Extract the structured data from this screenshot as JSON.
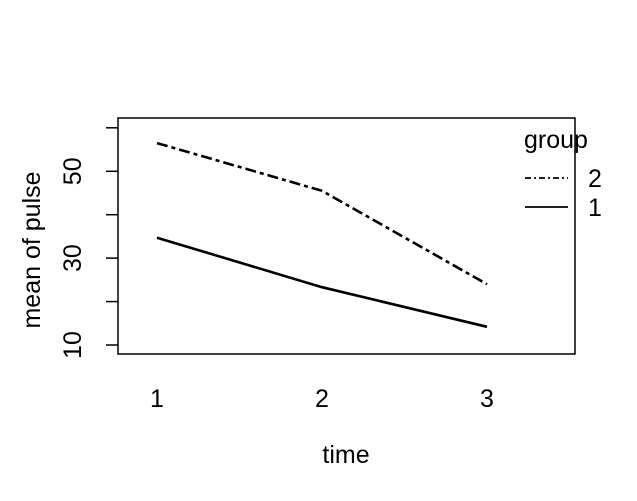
{
  "colors": {
    "background": "#ffffff",
    "foreground": "#000000"
  },
  "chart_data": {
    "type": "line",
    "title": "",
    "xlabel": "time",
    "ylabel": "mean of pulse",
    "x": [
      1,
      2,
      3
    ],
    "x_tick_labels": [
      "1",
      "2",
      "3"
    ],
    "y_tick_values": [
      10,
      20,
      30,
      40,
      50,
      60
    ],
    "y_labeled_ticks": [
      10,
      30,
      50
    ],
    "y_tick_labels": [
      "10",
      "30",
      "50"
    ],
    "ylim": [
      8,
      62
    ],
    "grid": false,
    "series": [
      {
        "name": "2",
        "line_style": "dashdot",
        "values": [
          56.5,
          45.5,
          24
        ]
      },
      {
        "name": "1",
        "line_style": "solid",
        "values": [
          34.7,
          23.3,
          14.2
        ]
      }
    ],
    "legend": {
      "title": "group",
      "position": "top-right",
      "entries": [
        {
          "label": "2",
          "line_style": "dashdot"
        },
        {
          "label": "1",
          "line_style": "solid"
        }
      ]
    }
  }
}
